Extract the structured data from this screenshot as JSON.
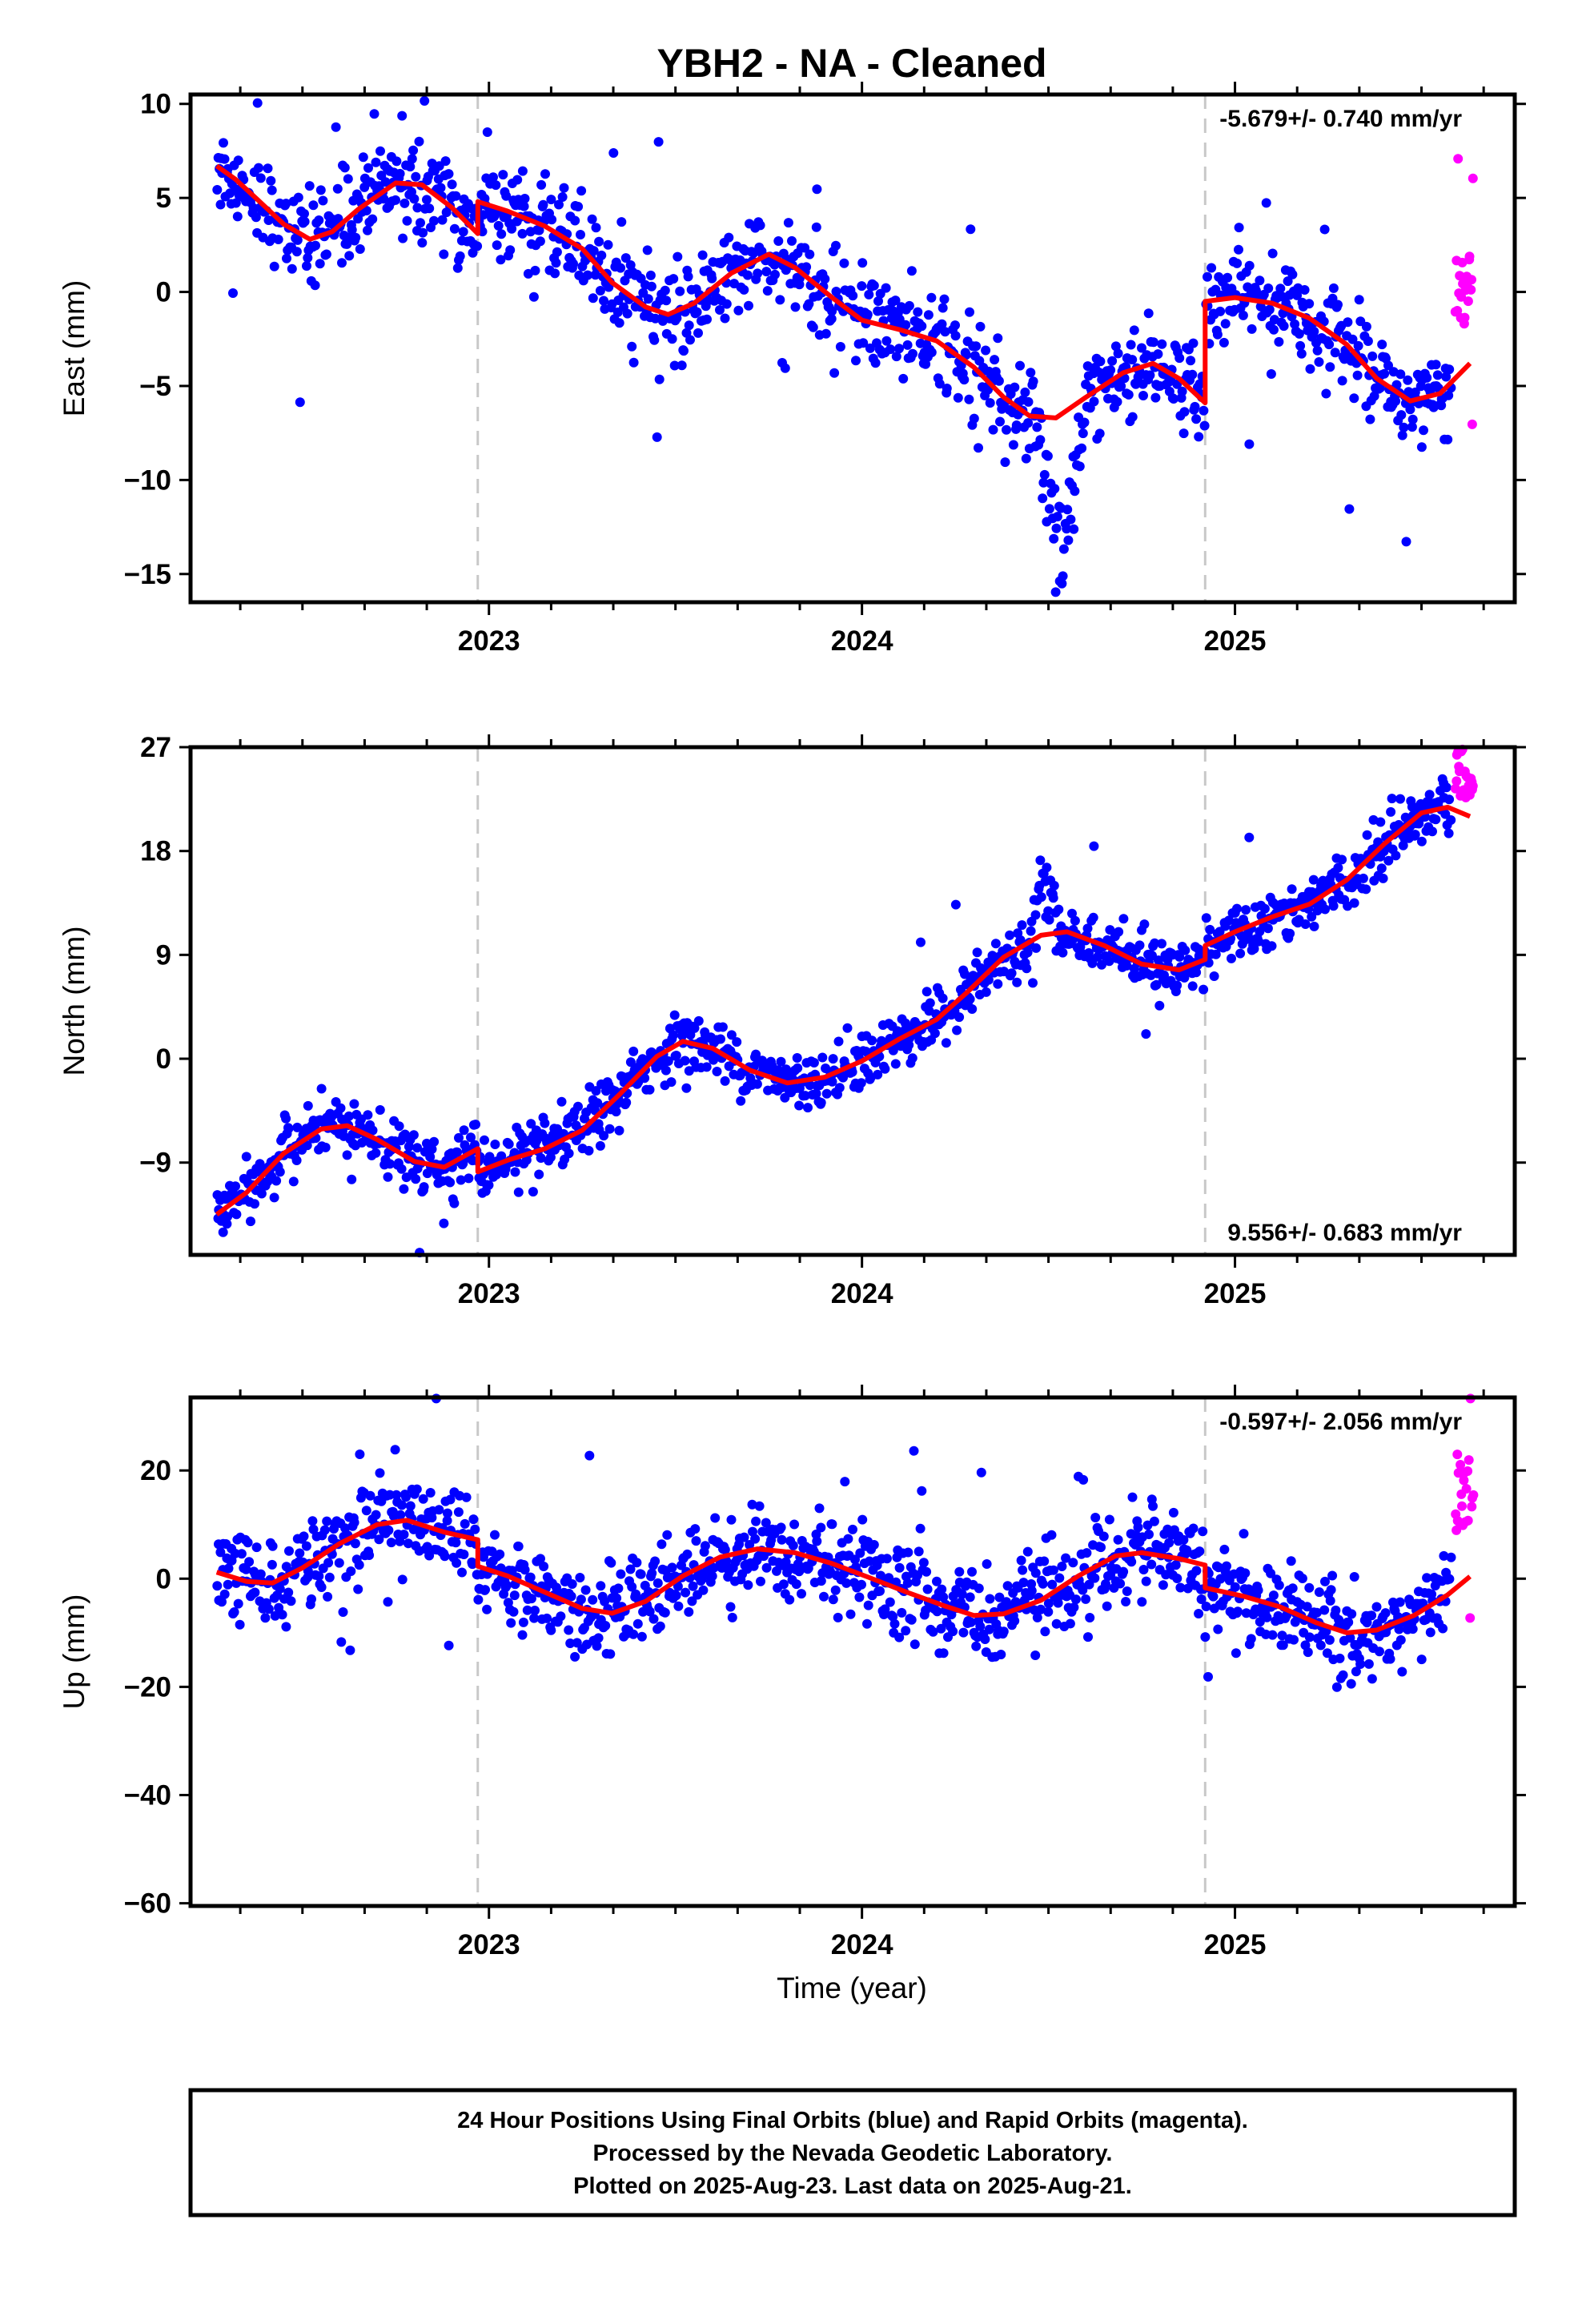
{
  "title": "YBH2  - NA - Cleaned",
  "xlabel": "Time (year)",
  "colors": {
    "final": "#0000ff",
    "rapid": "#ff00ff",
    "model": "#ff0000",
    "break": "#c8c8c8"
  },
  "footer": {
    "line1": "24 Hour Positions Using Final Orbits (blue) and Rapid Orbits (magenta).",
    "line2": "Processed by the Nevada Geodetic Laboratory.",
    "line3": "Plotted on 2025-Aug-23. Last data on 2025-Aug-21."
  },
  "chart_data": [
    {
      "type": "scatter",
      "component": "east",
      "ylabel": "East (mm)",
      "rate": "-5.679+/- 0.740 mm/yr",
      "rate_position": "top-right",
      "xlim": [
        2022.2,
        2025.75
      ],
      "ylim": [
        -16.5,
        10.5
      ],
      "xticks": [
        2023,
        2024,
        2025
      ],
      "yticks": [
        10,
        5,
        0,
        -5,
        -10,
        -15
      ],
      "breaks": [
        2022.97,
        2024.92
      ],
      "model": [
        [
          2022.27,
          6.7
        ],
        [
          2022.32,
          6.0
        ],
        [
          2022.38,
          4.9
        ],
        [
          2022.45,
          3.6
        ],
        [
          2022.52,
          2.8
        ],
        [
          2022.58,
          3.2
        ],
        [
          2022.65,
          4.4
        ],
        [
          2022.75,
          5.8
        ],
        [
          2022.82,
          5.7
        ],
        [
          2022.9,
          4.5
        ],
        [
          2022.97,
          3.1
        ],
        [
          2022.97,
          4.8
        ],
        [
          2023.05,
          4.3
        ],
        [
          2023.15,
          3.5
        ],
        [
          2023.25,
          2.3
        ],
        [
          2023.33,
          0.5
        ],
        [
          2023.42,
          -0.8
        ],
        [
          2023.48,
          -1.2
        ],
        [
          2023.55,
          -0.6
        ],
        [
          2023.65,
          1.0
        ],
        [
          2023.75,
          2.0
        ],
        [
          2023.82,
          1.3
        ],
        [
          2023.92,
          -0.3
        ],
        [
          2024.0,
          -1.5
        ],
        [
          2024.1,
          -2.0
        ],
        [
          2024.2,
          -2.6
        ],
        [
          2024.3,
          -4.0
        ],
        [
          2024.38,
          -5.6
        ],
        [
          2024.45,
          -6.6
        ],
        [
          2024.52,
          -6.7
        ],
        [
          2024.6,
          -5.6
        ],
        [
          2024.7,
          -4.3
        ],
        [
          2024.78,
          -3.8
        ],
        [
          2024.85,
          -4.6
        ],
        [
          2024.92,
          -5.9
        ],
        [
          2024.92,
          -0.5
        ],
        [
          2025.0,
          -0.3
        ],
        [
          2025.1,
          -0.6
        ],
        [
          2025.2,
          -1.4
        ],
        [
          2025.3,
          -2.8
        ],
        [
          2025.38,
          -4.6
        ],
        [
          2025.47,
          -5.8
        ],
        [
          2025.55,
          -5.4
        ],
        [
          2025.63,
          -3.8
        ]
      ],
      "series": [
        {
          "name": "final",
          "n": 1150,
          "noise": 1.2,
          "spikes": 0.012,
          "x0": 2022.27,
          "x1": 2025.58,
          "anom": [
            [
              2024.47,
              2024.6,
              -8.0
            ]
          ]
        },
        {
          "name": "rapid",
          "n": 22,
          "noise": 1.3,
          "spikes": 0.09,
          "x0": 2025.59,
          "x1": 2025.64,
          "offset": 4.3
        }
      ]
    },
    {
      "type": "scatter",
      "component": "north",
      "ylabel": "North (mm)",
      "rate": "9.556+/- 0.683 mm/yr",
      "rate_position": "bottom-right",
      "xlim": [
        2022.2,
        2025.75
      ],
      "ylim": [
        -17,
        27
      ],
      "xticks": [
        2023,
        2024,
        2025
      ],
      "yticks": [
        27,
        18,
        9,
        0,
        -9
      ],
      "breaks": [
        2022.97,
        2024.92
      ],
      "model": [
        [
          2022.27,
          -13.5
        ],
        [
          2022.35,
          -11.6
        ],
        [
          2022.45,
          -8.2
        ],
        [
          2022.55,
          -6.1
        ],
        [
          2022.62,
          -5.8
        ],
        [
          2022.7,
          -7.0
        ],
        [
          2022.8,
          -8.9
        ],
        [
          2022.88,
          -9.4
        ],
        [
          2022.97,
          -7.8
        ],
        [
          2022.97,
          -9.8
        ],
        [
          2023.05,
          -8.8
        ],
        [
          2023.15,
          -7.8
        ],
        [
          2023.25,
          -6.2
        ],
        [
          2023.35,
          -3.1
        ],
        [
          2023.45,
          0.2
        ],
        [
          2023.52,
          1.5
        ],
        [
          2023.6,
          0.9
        ],
        [
          2023.7,
          -1.0
        ],
        [
          2023.8,
          -2.1
        ],
        [
          2023.9,
          -1.6
        ],
        [
          2024.0,
          -0.2
        ],
        [
          2024.1,
          1.7
        ],
        [
          2024.2,
          3.4
        ],
        [
          2024.28,
          5.7
        ],
        [
          2024.38,
          8.8
        ],
        [
          2024.48,
          10.7
        ],
        [
          2024.55,
          11.0
        ],
        [
          2024.65,
          9.8
        ],
        [
          2024.75,
          8.2
        ],
        [
          2024.85,
          7.7
        ],
        [
          2024.92,
          8.6
        ],
        [
          2024.92,
          9.8
        ],
        [
          2025.0,
          11.0
        ],
        [
          2025.1,
          12.3
        ],
        [
          2025.2,
          13.4
        ],
        [
          2025.3,
          15.5
        ],
        [
          2025.4,
          18.6
        ],
        [
          2025.5,
          21.3
        ],
        [
          2025.57,
          21.8
        ],
        [
          2025.63,
          21.0
        ]
      ],
      "series": [
        {
          "name": "final",
          "n": 1150,
          "noise": 1.2,
          "spikes": 0.012,
          "x0": 2022.27,
          "x1": 2025.58,
          "anom": [
            [
              2024.45,
              2024.53,
              5.0
            ]
          ]
        },
        {
          "name": "rapid",
          "n": 22,
          "noise": 1.2,
          "spikes": 0.0,
          "x0": 2025.59,
          "x1": 2025.64,
          "offset": 2.5
        }
      ]
    },
    {
      "type": "scatter",
      "component": "up",
      "ylabel": "Up (mm)",
      "rate": "-0.597+/- 2.056 mm/yr",
      "rate_position": "top-right",
      "xlim": [
        2022.2,
        2025.75
      ],
      "ylim": [
        -60.5,
        33.5
      ],
      "xticks": [
        2023,
        2024,
        2025
      ],
      "yticks": [
        20,
        0,
        -20,
        -40,
        -60
      ],
      "breaks": [
        2022.97,
        2024.92
      ],
      "model": [
        [
          2022.27,
          1.2
        ],
        [
          2022.35,
          -0.5
        ],
        [
          2022.42,
          -0.8
        ],
        [
          2022.5,
          2.0
        ],
        [
          2022.6,
          6.5
        ],
        [
          2022.7,
          10.0
        ],
        [
          2022.78,
          10.8
        ],
        [
          2022.88,
          8.6
        ],
        [
          2022.97,
          7.2
        ],
        [
          2022.97,
          2.3
        ],
        [
          2023.05,
          0.5
        ],
        [
          2023.15,
          -2.5
        ],
        [
          2023.25,
          -5.5
        ],
        [
          2023.33,
          -6.4
        ],
        [
          2023.42,
          -4.2
        ],
        [
          2023.52,
          0.5
        ],
        [
          2023.62,
          4.0
        ],
        [
          2023.72,
          5.5
        ],
        [
          2023.82,
          4.8
        ],
        [
          2023.92,
          2.8
        ],
        [
          2024.02,
          0.2
        ],
        [
          2024.12,
          -2.5
        ],
        [
          2024.22,
          -5.0
        ],
        [
          2024.3,
          -6.8
        ],
        [
          2024.38,
          -6.5
        ],
        [
          2024.48,
          -4.0
        ],
        [
          2024.58,
          0.5
        ],
        [
          2024.68,
          4.2
        ],
        [
          2024.75,
          4.8
        ],
        [
          2024.85,
          3.7
        ],
        [
          2024.92,
          2.5
        ],
        [
          2024.92,
          -1.7
        ],
        [
          2025.02,
          -3.2
        ],
        [
          2025.12,
          -5.2
        ],
        [
          2025.22,
          -8.2
        ],
        [
          2025.3,
          -10.0
        ],
        [
          2025.38,
          -9.5
        ],
        [
          2025.48,
          -6.8
        ],
        [
          2025.57,
          -3.0
        ],
        [
          2025.63,
          0.4
        ]
      ],
      "series": [
        {
          "name": "final",
          "n": 1150,
          "noise": 4.2,
          "spikes": 0.01,
          "x0": 2022.27,
          "x1": 2025.58
        },
        {
          "name": "rapid",
          "n": 22,
          "noise": 5.0,
          "spikes": 0.1,
          "x0": 2025.59,
          "x1": 2025.64,
          "offset": 18.0
        }
      ]
    }
  ]
}
